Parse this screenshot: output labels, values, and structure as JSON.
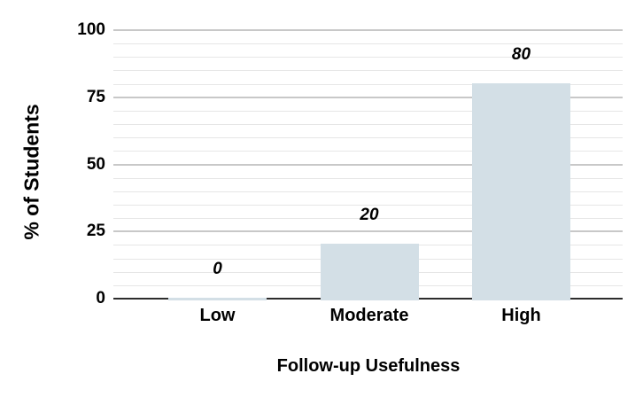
{
  "chart_data": {
    "type": "bar",
    "title": "",
    "xlabel": "Follow-up Usefulness",
    "ylabel": "% of Students",
    "categories": [
      "Low",
      "Moderate",
      "High"
    ],
    "values": [
      0,
      20,
      80
    ],
    "bar_labels": [
      "0",
      "20",
      "80"
    ],
    "y_ticks": [
      0,
      25,
      50,
      75,
      100
    ],
    "ylim": [
      0,
      100
    ],
    "y_minor_step": 5,
    "grid": "horizontal major and minor gridlines",
    "legend": "none",
    "colors": {
      "bar_fill": "#d3dfe6",
      "major_grid": "#c8c8c8",
      "minor_grid": "#e6e6e6",
      "axis_line": "#2d2d2d",
      "text": "#000000",
      "background": "#ffffff"
    }
  }
}
